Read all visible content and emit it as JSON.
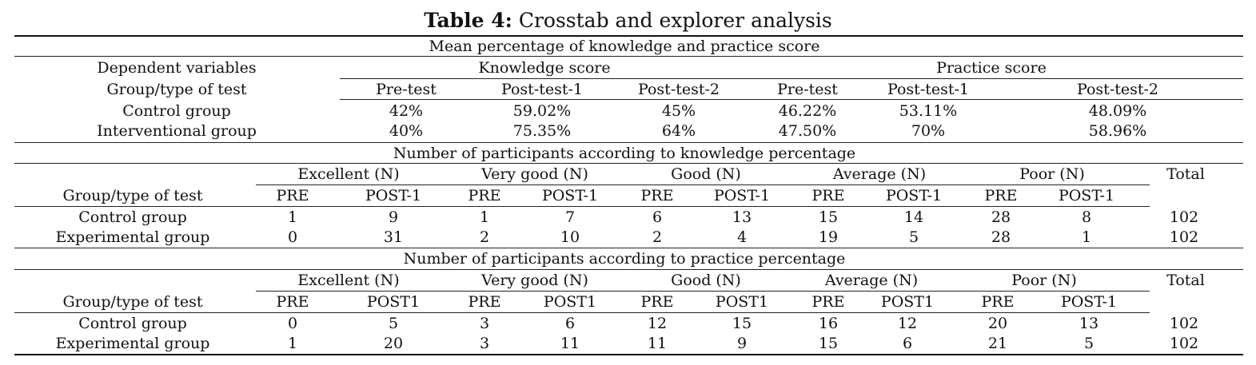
{
  "caption": {
    "label": "Table 4:",
    "title": "Crosstab and explorer analysis"
  },
  "section1": {
    "title": "Mean percentage of knowledge and practice score",
    "row_header_1": "Dependent variables",
    "knowledge_header": "Knowledge score",
    "practice_header": "Practice score",
    "row_header_2": "Group/type of test",
    "test_types": [
      "Pre-test",
      "Post-test-1",
      "Post-test-2",
      "Pre-test",
      "Post-test-1",
      "Post-test-2"
    ],
    "rows": [
      {
        "group": "Control group",
        "values": [
          "42%",
          "59.02%",
          "45%",
          "46.22%",
          "53.11%",
          "48.09%"
        ]
      },
      {
        "group": "Interventional group",
        "values": [
          "40%",
          "75.35%",
          "64%",
          "47.50%",
          "70%",
          "58.96%"
        ]
      }
    ]
  },
  "section2": {
    "title": "Number of participants according to knowledge percentage",
    "categories": [
      "Excellent (N)",
      "Very good (N)",
      "Good (N)",
      "Average (N)",
      "Poor (N)"
    ],
    "total_label": "Total",
    "row_header": "Group/type of test",
    "subheaders": [
      "PRE",
      "POST-1",
      "PRE",
      "POST-1",
      "PRE",
      "POST-1",
      "PRE",
      "POST-1",
      "PRE",
      "POST-1"
    ],
    "rows": [
      {
        "group": "Control group",
        "values": [
          "1",
          "9",
          "1",
          "7",
          "6",
          "13",
          "15",
          "14",
          "28",
          "8"
        ],
        "total": "102"
      },
      {
        "group": "Experimental group",
        "values": [
          "0",
          "31",
          "2",
          "10",
          "2",
          "4",
          "19",
          "5",
          "28",
          "1"
        ],
        "total": "102"
      }
    ]
  },
  "section3": {
    "title": "Number of participants according to practice percentage",
    "categories": [
      "Excellent (N)",
      "Very good (N)",
      "Good (N)",
      "Average (N)",
      "Poor (N)"
    ],
    "total_label": "Total",
    "row_header": "Group/type of test",
    "subheaders": [
      "PRE",
      "POST1",
      "PRE",
      "POST1",
      "PRE",
      "POST1",
      "PRE",
      "POST1",
      "PRE",
      "POST-1"
    ],
    "rows": [
      {
        "group": "Control group",
        "values": [
          "0",
          "5",
          "3",
          "6",
          "12",
          "15",
          "16",
          "12",
          "20",
          "13"
        ],
        "total": "102"
      },
      {
        "group": "Experimental group",
        "values": [
          "1",
          "20",
          "3",
          "11",
          "11",
          "9",
          "15",
          "6",
          "21",
          "5"
        ],
        "total": "102"
      }
    ]
  }
}
